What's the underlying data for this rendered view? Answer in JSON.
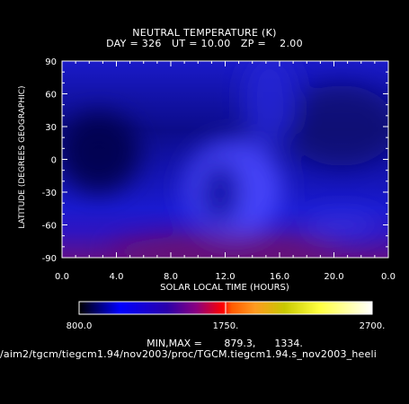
{
  "chart_data": {
    "type": "heatmap",
    "title": "NEUTRAL TEMPERATURE (K)",
    "subtitle": "DAY = 326   UT = 10.00   ZP =    2.00",
    "xlabel": "SOLAR LOCAL TIME (HOURS)",
    "ylabel": "LATITUDE (DEGREES GEOGRAPHIC)",
    "x_ticks": [
      "0.0",
      "4.0",
      "8.0",
      "12.0",
      "16.0",
      "20.0",
      "0.0"
    ],
    "y_ticks": [
      "90",
      "60",
      "30",
      "0",
      "-30",
      "-60",
      "-90"
    ],
    "xlim": [
      0,
      24
    ],
    "ylim": [
      -90,
      90
    ],
    "colorbar": {
      "ticks": [
        "800.0",
        "1750.",
        "2700."
      ],
      "range": [
        800,
        2700
      ]
    },
    "minmax_label": "MIN,MAX =       879.3,      1334.",
    "min": 879.3,
    "max": 1334,
    "source_path": "/aim2/tgcm/tiegcm1.94/nov2003/proc/TGCM.tiegcm1.94.s_nov2003_heeli"
  }
}
